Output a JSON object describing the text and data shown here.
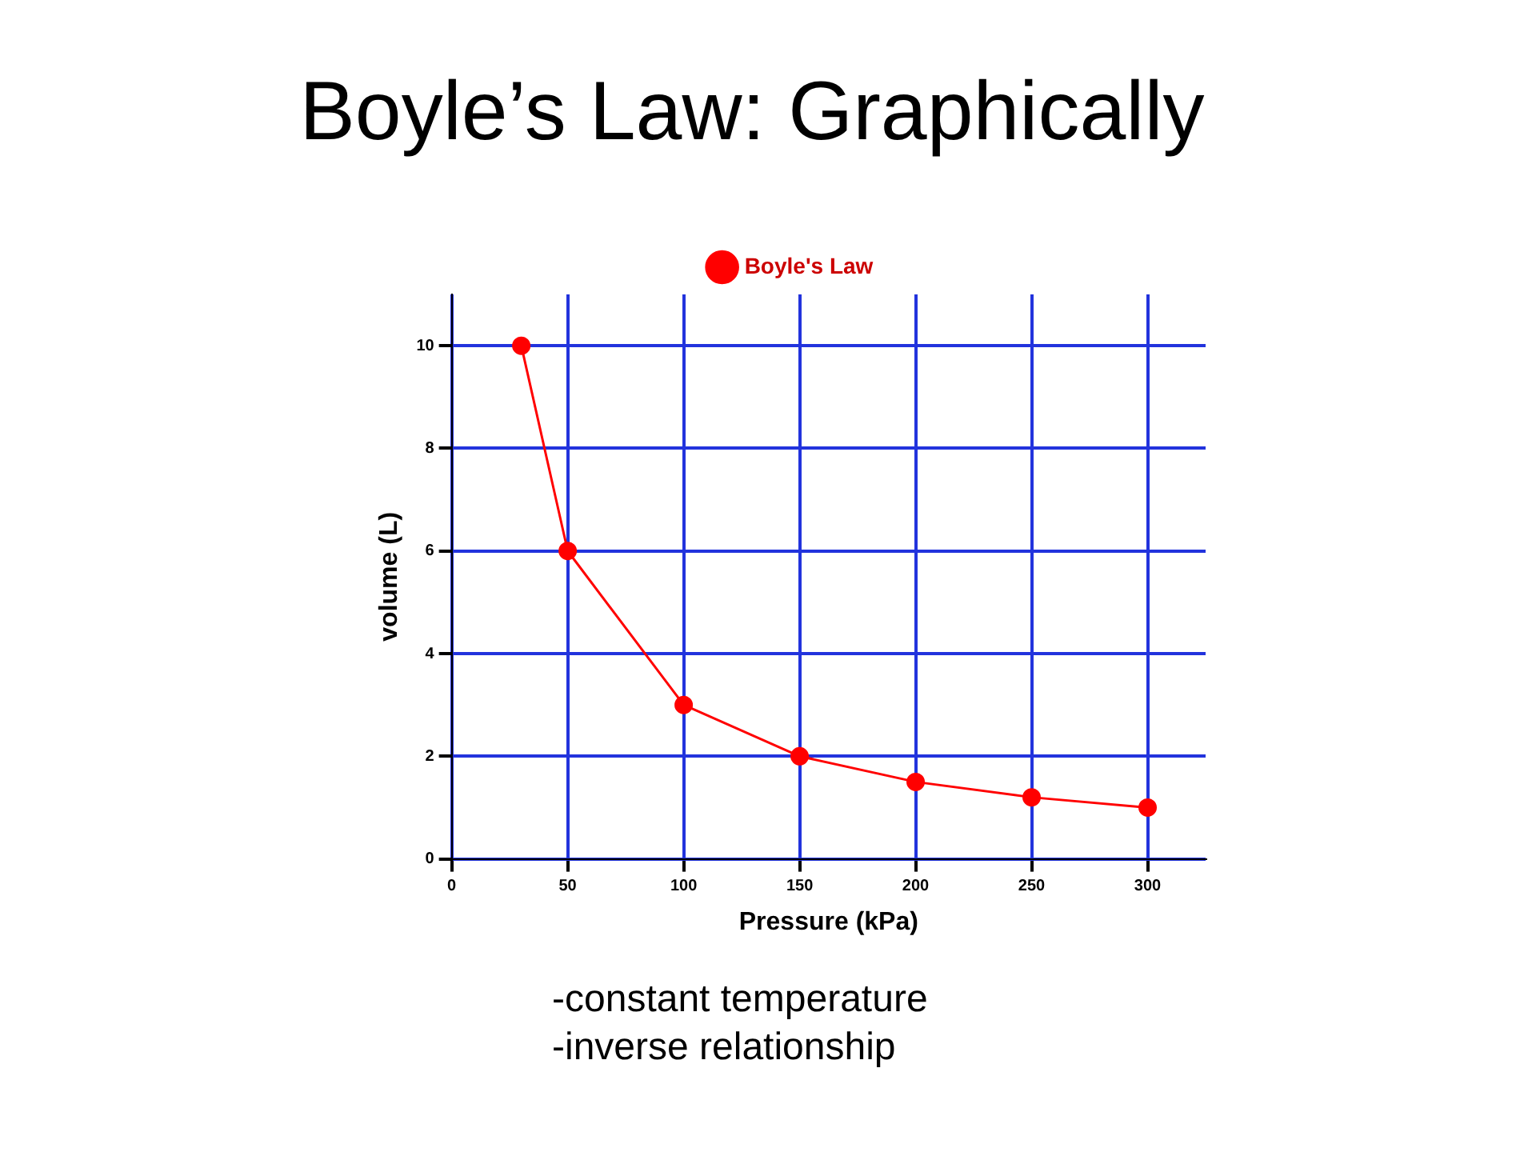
{
  "chart_data": {
    "type": "line",
    "title": "Boyle’s Law: Graphically",
    "xlabel": "Pressure (kPa)",
    "ylabel": "volume (L)",
    "x": [
      30,
      50,
      100,
      150,
      200,
      250,
      300
    ],
    "series": [
      {
        "name": "Boyle's Law",
        "color": "#ff0000",
        "values": [
          10,
          6,
          3,
          2,
          1.5,
          1.2,
          1
        ]
      }
    ],
    "xlim": [
      0,
      325
    ],
    "xticks": [
      0,
      50,
      100,
      150,
      200,
      250,
      300
    ],
    "ylim": [
      0,
      11
    ],
    "yticks": [
      0,
      2,
      4,
      6,
      8,
      10
    ],
    "grid": true,
    "legend": "top",
    "marker": "circle",
    "annotations": [
      "-constant temperature",
      "-inverse relationship"
    ]
  }
}
